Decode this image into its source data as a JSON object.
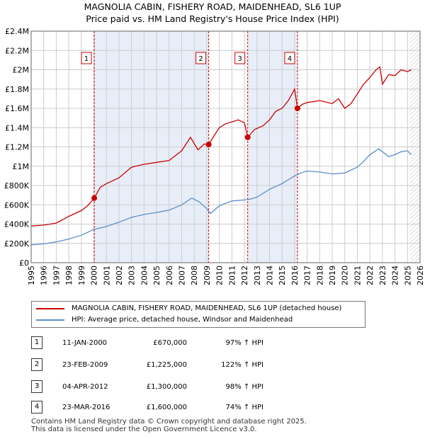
{
  "chart_data": {
    "type": "line",
    "title": "MAGNOLIA CABIN, FISHERY ROAD, MAIDENHEAD, SL6 1UP",
    "subtitle": "Price paid vs. HM Land Registry's House Price Index (HPI)",
    "xlim": [
      1995,
      2026
    ],
    "ylim": [
      0,
      2400000
    ],
    "x_ticks": [
      "1995",
      "1996",
      "1997",
      "1998",
      "1999",
      "2000",
      "2001",
      "2002",
      "2003",
      "2004",
      "2005",
      "2006",
      "2007",
      "2008",
      "2009",
      "2010",
      "2011",
      "2012",
      "2013",
      "2014",
      "2015",
      "2016",
      "2017",
      "2018",
      "2019",
      "2020",
      "2021",
      "2022",
      "2023",
      "2024",
      "2025",
      "2026"
    ],
    "y_ticks": [
      {
        "value": 0,
        "label": "£0"
      },
      {
        "value": 200000,
        "label": "£200K"
      },
      {
        "value": 400000,
        "label": "£400K"
      },
      {
        "value": 600000,
        "label": "£600K"
      },
      {
        "value": 800000,
        "label": "£800K"
      },
      {
        "value": 1000000,
        "label": "£1M"
      },
      {
        "value": 1200000,
        "label": "£1.2M"
      },
      {
        "value": 1400000,
        "label": "£1.4M"
      },
      {
        "value": 1600000,
        "label": "£1.6M"
      },
      {
        "value": 1800000,
        "label": "£1.8M"
      },
      {
        "value": 2000000,
        "label": "£2M"
      },
      {
        "value": 2200000,
        "label": "£2.2M"
      },
      {
        "value": 2400000,
        "label": "£2.4M"
      }
    ],
    "grid": true,
    "shaded_spans": [
      [
        2000.03,
        2009.15
      ],
      [
        2012.26,
        2016.23
      ]
    ],
    "hatched_from": 2025.2,
    "series": [
      {
        "name": "MAGNOLIA CABIN, FISHERY ROAD, MAIDENHEAD, SL6 1UP (detached house)",
        "color": "#cc0000",
        "x": [
          1995,
          1996,
          1997,
          1998,
          1999,
          1999.5,
          2000.03,
          2000.5,
          2001,
          2002,
          2003,
          2004,
          2005,
          2006,
          2007,
          2007.7,
          2008.3,
          2008.8,
          2009.15,
          2009.6,
          2010,
          2010.5,
          2011,
          2011.5,
          2012,
          2012.26,
          2012.8,
          2013.5,
          2014,
          2014.5,
          2015,
          2015.5,
          2016,
          2016.23,
          2016.6,
          2017,
          2018,
          2019,
          2019.5,
          2020,
          2020.5,
          2021,
          2021.5,
          2022,
          2022.5,
          2022.8,
          2023,
          2023.5,
          2024,
          2024.5,
          2025,
          2025.3
        ],
        "values": [
          380000,
          390000,
          410000,
          480000,
          540000,
          590000,
          670000,
          780000,
          820000,
          880000,
          990000,
          1020000,
          1040000,
          1060000,
          1160000,
          1300000,
          1170000,
          1230000,
          1225000,
          1320000,
          1400000,
          1440000,
          1460000,
          1480000,
          1450000,
          1300000,
          1380000,
          1420000,
          1480000,
          1570000,
          1600000,
          1680000,
          1800000,
          1600000,
          1640000,
          1660000,
          1680000,
          1650000,
          1700000,
          1600000,
          1650000,
          1750000,
          1850000,
          1920000,
          2000000,
          2030000,
          1850000,
          1950000,
          1940000,
          2000000,
          1980000,
          2000000
        ]
      },
      {
        "name": "HPI: Average price, detached house, Windsor and Maidenhead",
        "color": "#5b8ec9",
        "x": [
          1995,
          1996,
          1997,
          1998,
          1999,
          2000,
          2001,
          2002,
          2003,
          2004,
          2005,
          2006,
          2007,
          2007.8,
          2008.4,
          2009,
          2009.3,
          2010,
          2011,
          2012,
          2012.5,
          2013,
          2014,
          2015,
          2016,
          2016.5,
          2017,
          2018,
          2019,
          2020,
          2021,
          2021.5,
          2022,
          2022.7,
          2023,
          2023.5,
          2024,
          2024.5,
          2025,
          2025.3
        ],
        "values": [
          185000,
          195000,
          215000,
          245000,
          285000,
          345000,
          375000,
          420000,
          470000,
          500000,
          520000,
          545000,
          600000,
          670000,
          630000,
          560000,
          510000,
          590000,
          640000,
          650000,
          660000,
          680000,
          760000,
          820000,
          900000,
          930000,
          950000,
          940000,
          920000,
          930000,
          990000,
          1050000,
          1120000,
          1180000,
          1150000,
          1100000,
          1120000,
          1150000,
          1160000,
          1120000
        ]
      }
    ],
    "sales": [
      {
        "label": "1",
        "x": 2000.03,
        "value": 670000
      },
      {
        "label": "2",
        "x": 2009.15,
        "value": 1225000
      },
      {
        "label": "3",
        "x": 2012.26,
        "value": 1300000
      },
      {
        "label": "4",
        "x": 2016.23,
        "value": 1600000
      }
    ],
    "legend": [
      "MAGNOLIA CABIN, FISHERY ROAD, MAIDENHEAD, SL6 1UP (detached house)",
      "HPI: Average price, detached house, Windsor and Maidenhead"
    ],
    "legend_position": "below"
  },
  "transactions": [
    {
      "num": "1",
      "date": "11-JAN-2000",
      "price": "£670,000",
      "hpi": "97% ↑ HPI"
    },
    {
      "num": "2",
      "date": "23-FEB-2009",
      "price": "£1,225,000",
      "hpi": "122% ↑ HPI"
    },
    {
      "num": "3",
      "date": "04-APR-2012",
      "price": "£1,300,000",
      "hpi": "98% ↑ HPI"
    },
    {
      "num": "4",
      "date": "23-MAR-2016",
      "price": "£1,600,000",
      "hpi": "74% ↑ HPI"
    }
  ],
  "footer": {
    "line1": "Contains HM Land Registry data © Crown copyright and database right 2025.",
    "line2": "This data is licensed under the Open Government Licence v3.0."
  },
  "colors": {
    "red": "#cc0000",
    "blue": "#5b8ec9",
    "shade": "#e8eef8",
    "grid": "#cccccc"
  }
}
